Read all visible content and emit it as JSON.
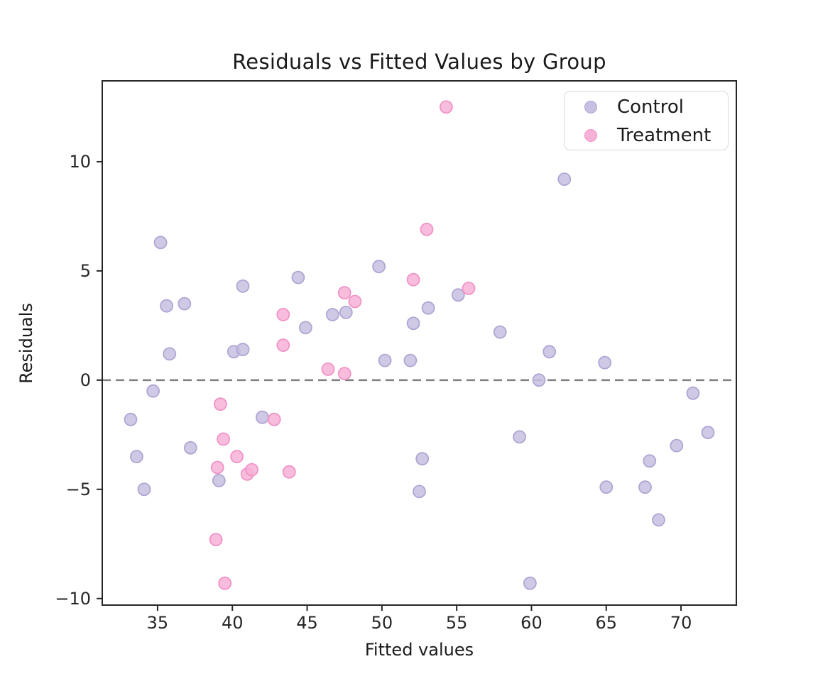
{
  "page": {
    "background": "#ffffff"
  },
  "chart_data": {
    "type": "scatter",
    "title": "Residuals vs Fitted Values by Group",
    "xlabel": "Fitted values",
    "ylabel": "Residuals",
    "xlim": [
      31.3,
      73.7
    ],
    "ylim": [
      -10.3,
      13.7
    ],
    "xticks": [
      35,
      40,
      45,
      50,
      55,
      60,
      65,
      70
    ],
    "yticks": [
      -10,
      -5,
      0,
      5,
      10
    ],
    "grid": false,
    "axis_color": "#262626",
    "tick_label_color": "#262626",
    "zero_line": {
      "y": 0,
      "style": "dashed",
      "color": "#7f7f7f"
    },
    "legend": {
      "position": "upper-right"
    },
    "marker": {
      "radius": 8.5,
      "fill_opacity": 0.85,
      "edge_width": 1.8
    },
    "series": [
      {
        "name": "Control",
        "fill": "#c7c0e2",
        "edge": "#b0a6d3",
        "points": [
          [
            33.2,
            -1.8
          ],
          [
            33.6,
            -3.5
          ],
          [
            34.1,
            -5.0
          ],
          [
            34.7,
            -0.5
          ],
          [
            35.2,
            6.3
          ],
          [
            35.6,
            3.4
          ],
          [
            35.8,
            1.2
          ],
          [
            36.8,
            3.5
          ],
          [
            37.2,
            -3.1
          ],
          [
            39.1,
            -4.6
          ],
          [
            40.1,
            1.3
          ],
          [
            40.7,
            1.4
          ],
          [
            40.7,
            4.3
          ],
          [
            42.0,
            -1.7
          ],
          [
            44.4,
            4.7
          ],
          [
            44.9,
            2.4
          ],
          [
            46.7,
            3.0
          ],
          [
            47.6,
            3.1
          ],
          [
            49.8,
            5.2
          ],
          [
            50.2,
            0.9
          ],
          [
            51.9,
            0.9
          ],
          [
            52.1,
            2.6
          ],
          [
            52.5,
            -5.1
          ],
          [
            52.7,
            -3.6
          ],
          [
            53.1,
            3.3
          ],
          [
            55.1,
            3.9
          ],
          [
            57.9,
            2.2
          ],
          [
            59.2,
            -2.6
          ],
          [
            59.9,
            -9.3
          ],
          [
            60.5,
            0.0
          ],
          [
            61.2,
            1.3
          ],
          [
            62.2,
            9.2
          ],
          [
            64.9,
            0.8
          ],
          [
            65.0,
            -4.9
          ],
          [
            67.6,
            -4.9
          ],
          [
            67.9,
            -3.7
          ],
          [
            68.5,
            -6.4
          ],
          [
            69.7,
            -3.0
          ],
          [
            70.8,
            -0.6
          ],
          [
            71.8,
            -2.4
          ]
        ]
      },
      {
        "name": "Treatment",
        "fill": "#f7b1d7",
        "edge": "#f193c7",
        "points": [
          [
            38.9,
            -7.3
          ],
          [
            39.0,
            -4.0
          ],
          [
            39.2,
            -1.1
          ],
          [
            39.4,
            -2.7
          ],
          [
            39.5,
            -9.3
          ],
          [
            40.3,
            -3.5
          ],
          [
            41.0,
            -4.3
          ],
          [
            41.3,
            -4.1
          ],
          [
            42.8,
            -1.8
          ],
          [
            43.4,
            3.0
          ],
          [
            43.4,
            1.6
          ],
          [
            43.8,
            -4.2
          ],
          [
            46.4,
            0.5
          ],
          [
            47.5,
            4.0
          ],
          [
            47.5,
            0.3
          ],
          [
            48.2,
            3.6
          ],
          [
            52.1,
            4.6
          ],
          [
            53.0,
            6.9
          ],
          [
            54.3,
            12.5
          ],
          [
            55.8,
            4.2
          ]
        ]
      }
    ]
  }
}
